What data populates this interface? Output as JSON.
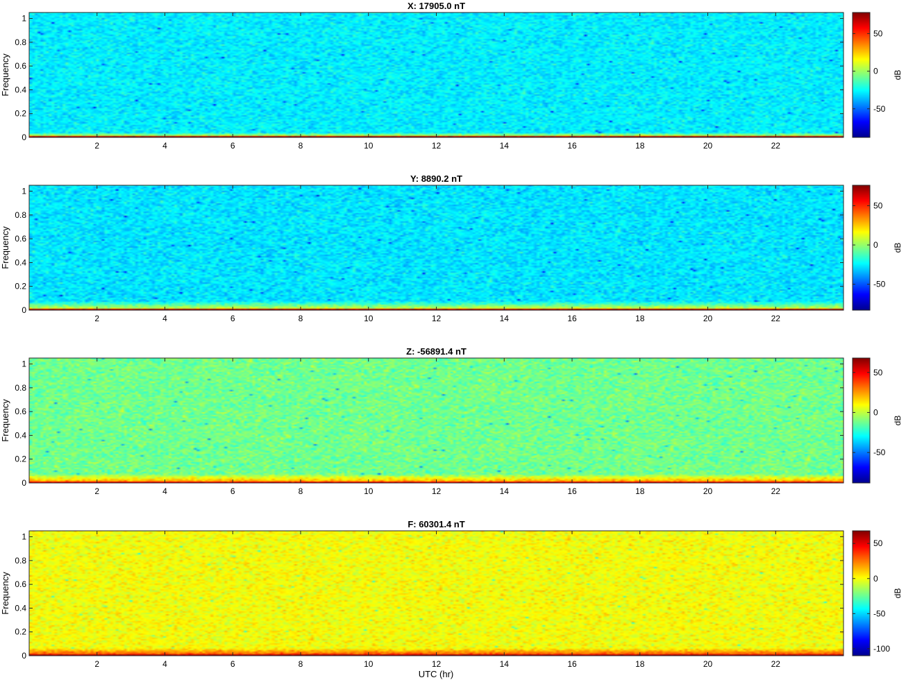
{
  "figure": {
    "xlabel": "UTC (hr)"
  },
  "chart_data": [
    {
      "type": "heatmap",
      "title": "X: 17905.0 nT",
      "xlabel": "",
      "ylabel": "Frequency",
      "xlim": [
        0,
        24
      ],
      "ylim": [
        0,
        1.05
      ],
      "xticks": [
        2,
        4,
        6,
        8,
        10,
        12,
        14,
        16,
        18,
        20,
        22
      ],
      "yticks": [
        0,
        0.2,
        0.4,
        0.6,
        0.8,
        1
      ],
      "colorbar": {
        "label": "dB",
        "ticks": [
          50,
          0,
          -50
        ],
        "clim": [
          -88,
          78
        ]
      },
      "background_db": -28,
      "low_band": {
        "freq_top": 0.04,
        "level_db": 10,
        "edge_db": 70
      }
    },
    {
      "type": "heatmap",
      "title": "Y: 8890.2 nT",
      "xlabel": "",
      "ylabel": "Frequency",
      "xlim": [
        0,
        24
      ],
      "ylim": [
        0,
        1.05
      ],
      "xticks": [
        2,
        4,
        6,
        8,
        10,
        12,
        14,
        16,
        18,
        20,
        22
      ],
      "yticks": [
        0,
        0.2,
        0.4,
        0.6,
        0.8,
        1
      ],
      "colorbar": {
        "label": "dB",
        "ticks": [
          50,
          0,
          -50
        ],
        "clim": [
          -83,
          76
        ]
      },
      "background_db": -27,
      "low_band": {
        "freq_top": 0.07,
        "level_db": 8,
        "edge_db": 68
      }
    },
    {
      "type": "heatmap",
      "title": "Z: -56891.4 nT",
      "xlabel": "",
      "ylabel": "Frequency",
      "xlim": [
        0,
        24
      ],
      "ylim": [
        0,
        1.05
      ],
      "xticks": [
        2,
        4,
        6,
        8,
        10,
        12,
        14,
        16,
        18,
        20,
        22
      ],
      "yticks": [
        0,
        0.2,
        0.4,
        0.6,
        0.8,
        1
      ],
      "colorbar": {
        "label": "dB",
        "ticks": [
          50,
          0,
          -50
        ],
        "clim": [
          -88,
          68
        ]
      },
      "background_db": -12,
      "low_band": {
        "freq_top": 0.07,
        "level_db": 22,
        "edge_db": 50
      }
    },
    {
      "type": "heatmap",
      "title": "F: 60301.4 nT",
      "xlabel": "UTC (hr)",
      "ylabel": "Frequency",
      "xlim": [
        0,
        24
      ],
      "ylim": [
        0,
        1.05
      ],
      "xticks": [
        2,
        4,
        6,
        8,
        10,
        12,
        14,
        16,
        18,
        20,
        22
      ],
      "yticks": [
        0,
        0.2,
        0.4,
        0.6,
        0.8,
        1
      ],
      "colorbar": {
        "label": "dB",
        "ticks": [
          50,
          0,
          -50,
          -100
        ],
        "clim": [
          -110,
          68
        ]
      },
      "background_db": 0,
      "low_band": {
        "freq_top": 0.06,
        "level_db": 30,
        "edge_db": 60
      }
    }
  ]
}
